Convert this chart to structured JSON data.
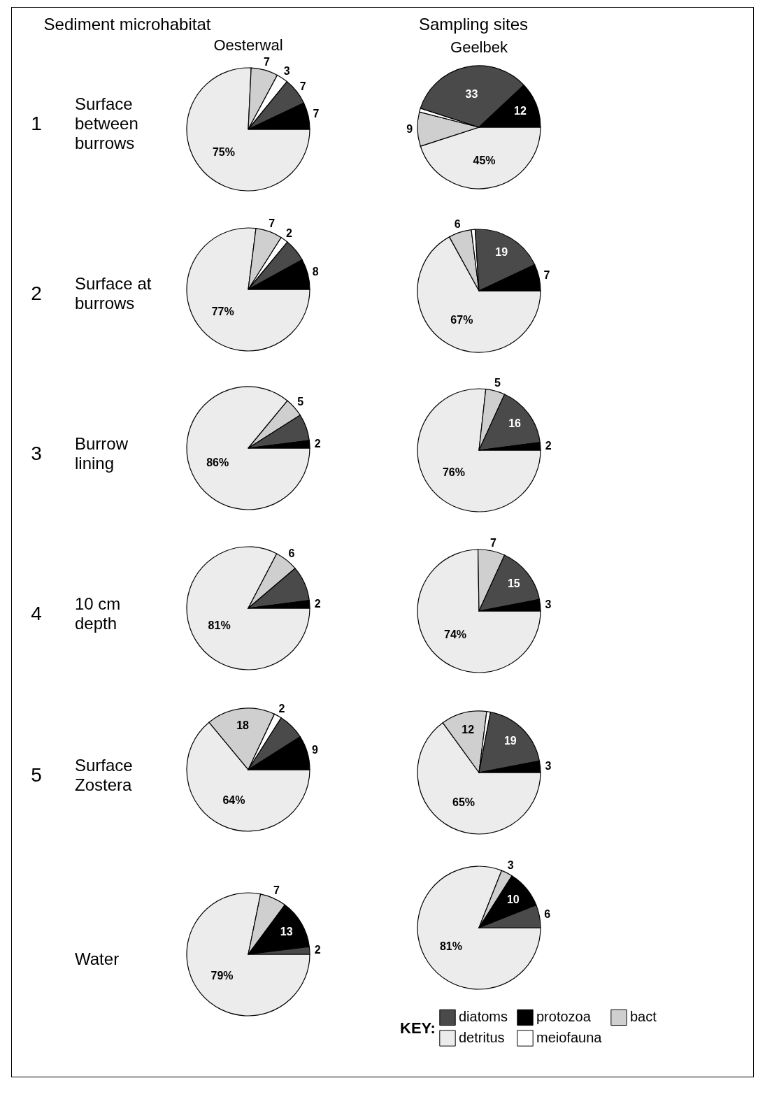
{
  "chart_data": [
    {
      "type": "other",
      "title": "Sampling sites",
      "annotations": [
        "Sediment microhabitat"
      ]
    },
    {
      "type": "pie",
      "title": "Oesterwal",
      "ylabel": "Surface between burrows",
      "annotations": [
        "1"
      ],
      "categories": [
        null,
        null,
        null,
        null,
        null
      ],
      "values": [
        7,
        7,
        3,
        7,
        75
      ],
      "value_labels": [
        "7",
        "7",
        "3",
        "7",
        "75%"
      ],
      "colors": [
        "#000000",
        "#4a4a4a",
        "#ffffff",
        "#cfcfcf",
        "#ececec"
      ]
    },
    {
      "type": "pie",
      "title": "Geelbek",
      "categories": [
        null,
        null,
        null,
        null,
        null
      ],
      "values": [
        12,
        33,
        1,
        9,
        45
      ],
      "value_labels": [
        "12",
        "33",
        null,
        "9",
        "45%"
      ],
      "colors": [
        "#000000",
        "#4a4a4a",
        "#ffffff",
        "#cfcfcf",
        "#ececec"
      ]
    },
    {
      "type": "pie",
      "ylabel": "Surface at burrows",
      "annotations": [
        "2"
      ],
      "categories": [
        null,
        null,
        null,
        null,
        null
      ],
      "values": [
        8,
        6,
        2,
        7,
        77
      ],
      "value_labels": [
        "8",
        null,
        "2",
        "7",
        "77%"
      ],
      "colors": [
        "#000000",
        "#4a4a4a",
        "#ffffff",
        "#cfcfcf",
        "#ececec"
      ]
    },
    {
      "type": "pie",
      "categories": [
        null,
        null,
        null,
        null,
        null
      ],
      "values": [
        7,
        19,
        1,
        6,
        67
      ],
      "value_labels": [
        "7",
        "19",
        null,
        "6",
        "67%"
      ],
      "colors": [
        "#000000",
        "#4a4a4a",
        "#ffffff",
        "#cfcfcf",
        "#ececec"
      ]
    },
    {
      "type": "pie",
      "ylabel": "Burrow lining",
      "annotations": [
        "3"
      ],
      "categories": [
        null,
        null,
        null,
        null
      ],
      "values": [
        2,
        7,
        5,
        86
      ],
      "value_labels": [
        "2",
        null,
        "5",
        "86%"
      ],
      "colors": [
        "#000000",
        "#4a4a4a",
        "#cfcfcf",
        "#ececec"
      ]
    },
    {
      "type": "pie",
      "categories": [
        null,
        null,
        null,
        null
      ],
      "values": [
        2,
        16,
        5,
        76
      ],
      "value_labels": [
        "2",
        "16",
        "5",
        "76%"
      ],
      "colors": [
        "#000000",
        "#4a4a4a",
        "#cfcfcf",
        "#ececec"
      ]
    },
    {
      "type": "pie",
      "ylabel": "10 cm depth",
      "annotations": [
        "4"
      ],
      "categories": [
        null,
        null,
        null,
        null
      ],
      "values": [
        2,
        9,
        6,
        81
      ],
      "value_labels": [
        "2",
        null,
        "6",
        "81%"
      ],
      "colors": [
        "#000000",
        "#4a4a4a",
        "#cfcfcf",
        "#ececec"
      ]
    },
    {
      "type": "pie",
      "categories": [
        null,
        null,
        null,
        null
      ],
      "values": [
        3,
        15,
        7,
        74
      ],
      "value_labels": [
        "3",
        "15",
        "7",
        "74%"
      ],
      "colors": [
        "#000000",
        "#4a4a4a",
        "#cfcfcf",
        "#ececec"
      ]
    },
    {
      "type": "pie",
      "ylabel": "Surface Zostera",
      "annotations": [
        "5"
      ],
      "categories": [
        null,
        null,
        null,
        null,
        null
      ],
      "values": [
        9,
        7,
        2,
        18,
        64
      ],
      "value_labels": [
        "9",
        null,
        "2",
        "18",
        "64%"
      ],
      "colors": [
        "#000000",
        "#4a4a4a",
        "#ffffff",
        "#cfcfcf",
        "#ececec"
      ]
    },
    {
      "type": "pie",
      "categories": [
        null,
        null,
        null,
        null,
        null
      ],
      "values": [
        3,
        19,
        1,
        12,
        65
      ],
      "value_labels": [
        "3",
        "19",
        null,
        "12",
        "65%"
      ],
      "colors": [
        "#000000",
        "#4a4a4a",
        "#ffffff",
        "#cfcfcf",
        "#ececec"
      ]
    },
    {
      "type": "pie",
      "ylabel": "Water",
      "categories": [
        null,
        null,
        null,
        null
      ],
      "values": [
        2,
        13,
        7,
        79
      ],
      "value_labels": [
        "2",
        "13",
        "7",
        "79%"
      ],
      "colors": [
        "#4a4a4a",
        "#000000",
        "#cfcfcf",
        "#ececec"
      ]
    },
    {
      "type": "pie",
      "legend": "bottom",
      "legend_title": "KEY:",
      "categories": [
        "diatoms",
        "protozoa",
        "bact",
        "detritus",
        "meiofauna"
      ],
      "values": [
        6,
        10,
        3,
        81,
        0
      ],
      "value_labels": [
        "6",
        "10",
        "3",
        "81%",
        null
      ],
      "colors": [
        "#4a4a4a",
        "#000000",
        "#cfcfcf",
        "#ececec",
        "#ffffff"
      ]
    }
  ]
}
